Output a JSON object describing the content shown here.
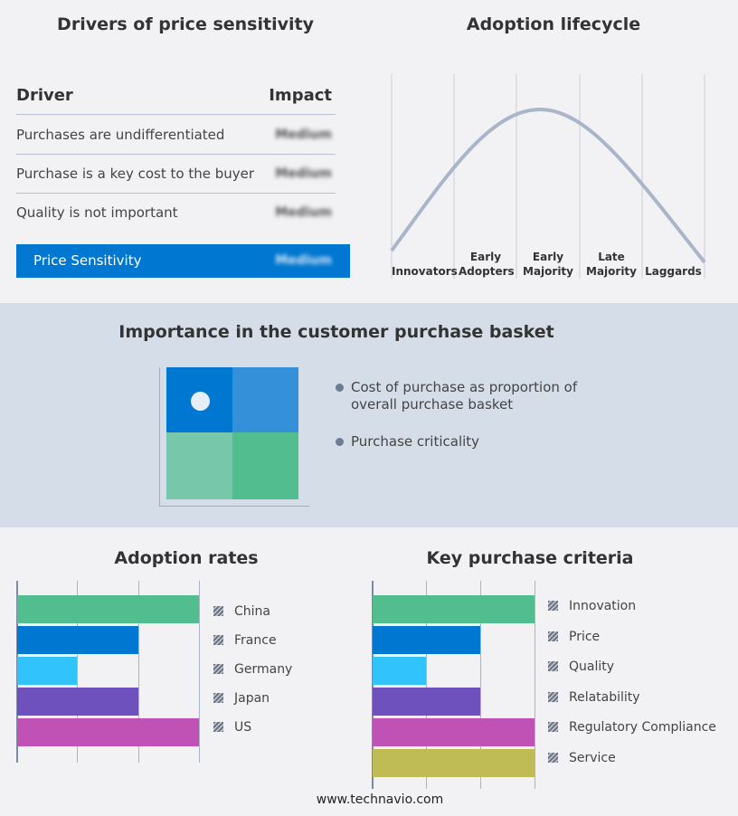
{
  "drivers": {
    "title": "Drivers of price sensitivity",
    "col_driver": "Driver",
    "col_impact": "Impact",
    "rows": [
      {
        "driver": "Purchases are undifferentiated",
        "impact": "Medium"
      },
      {
        "driver": "Purchase is a key cost to the buyer",
        "impact": "Medium"
      },
      {
        "driver": "Quality is not important",
        "impact": "Medium"
      }
    ],
    "summary": {
      "label": "Price Sensitivity",
      "impact": "Medium"
    }
  },
  "lifecycle": {
    "title": "Adoption lifecycle",
    "stages": [
      "Innovators",
      "Early Adopters",
      "Early Majority",
      "Late Majority",
      "Laggards"
    ]
  },
  "basket": {
    "title": "Importance in the customer purchase basket",
    "legend": [
      "Cost of purchase as proportion of overall purchase basket",
      "Purchase criticality"
    ],
    "colors": [
      "#0077d0",
      "#3490d8",
      "#77c8aa",
      "#52bd8f"
    ]
  },
  "chart_data": [
    {
      "type": "bar",
      "orientation": "horizontal",
      "title": "Adoption rates",
      "categories": [
        "China",
        "France",
        "Germany",
        "Japan",
        "US"
      ],
      "values": [
        3,
        2,
        1,
        2,
        3
      ],
      "xlim": [
        0,
        3
      ],
      "grid": true,
      "legend": "right",
      "colors": [
        "#52bd8f",
        "#0077d0",
        "#30c3fc",
        "#6f51bd",
        "#bf52b4"
      ]
    },
    {
      "type": "bar",
      "orientation": "horizontal",
      "title": "Key purchase criteria",
      "categories": [
        "Innovation",
        "Price",
        "Quality",
        "Relatability",
        "Regulatory Compliance",
        "Service"
      ],
      "values": [
        3,
        2,
        1,
        2,
        3,
        3
      ],
      "xlim": [
        0,
        3
      ],
      "grid": true,
      "legend": "right",
      "colors": [
        "#52bd8f",
        "#0077d0",
        "#30c3fc",
        "#6f51bd",
        "#bf52b4",
        "#bfbb55"
      ]
    }
  ],
  "footer": "www.technavio.com"
}
